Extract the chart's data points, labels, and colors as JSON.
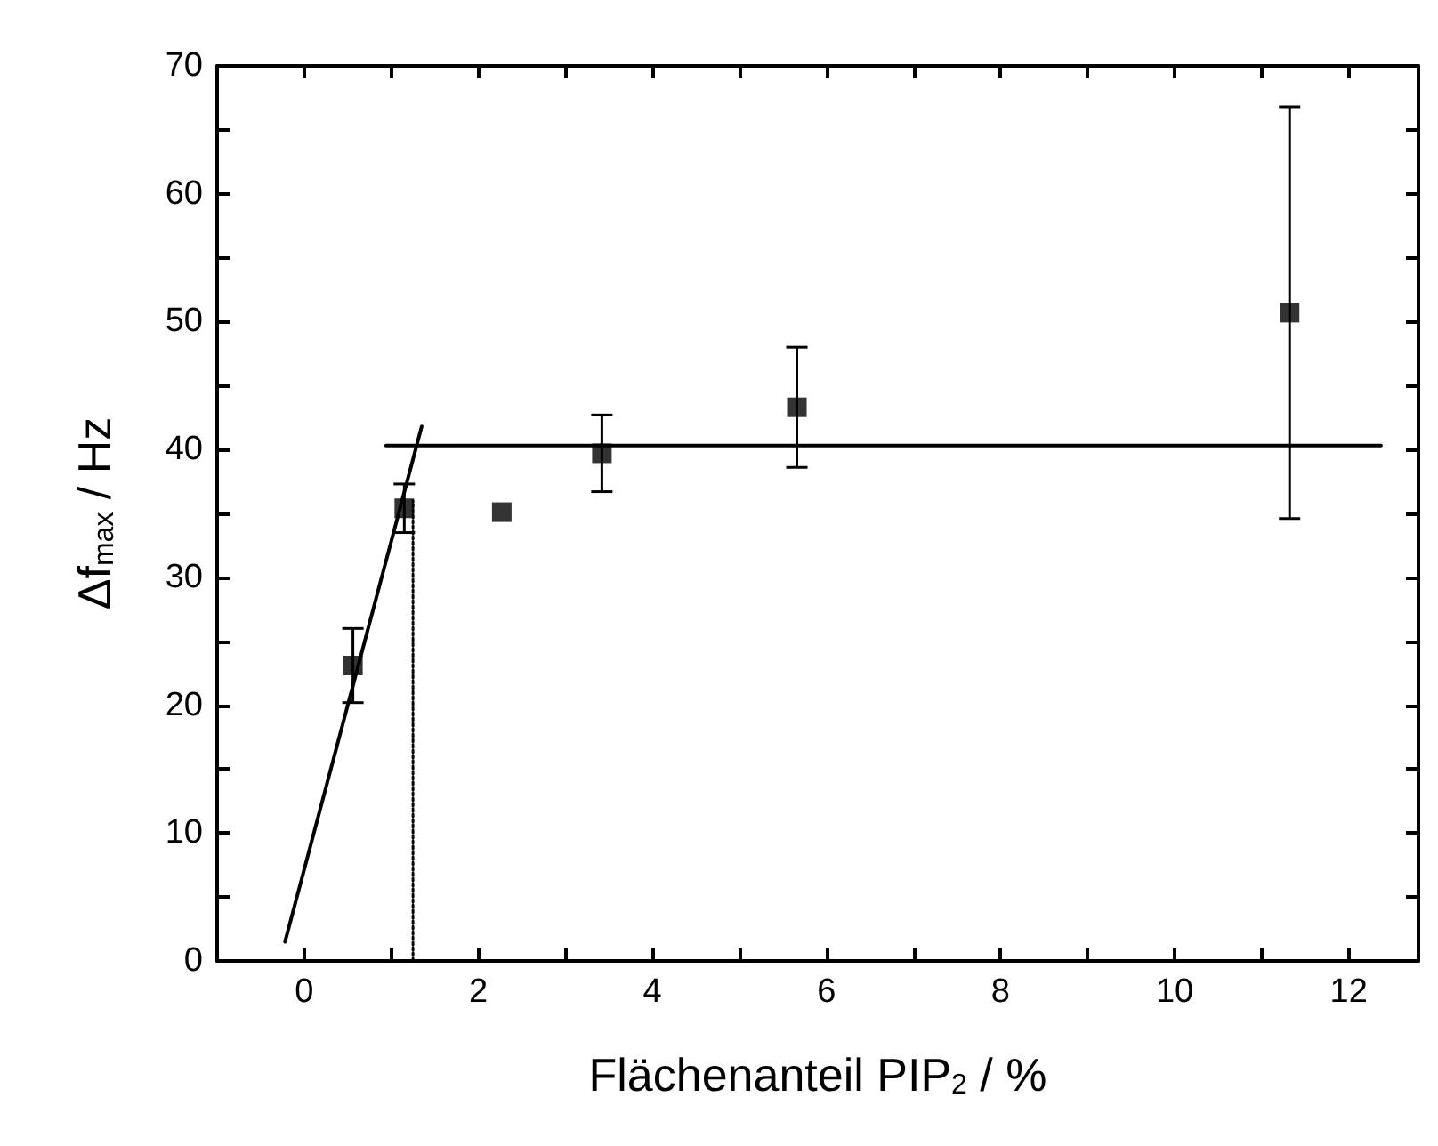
{
  "chart_data": {
    "type": "scatter",
    "xlabel": "Flächenanteil PIP$_{2}$ / %",
    "ylabel": "Δf$_{max}$ / Hz",
    "xlim": [
      -1,
      12.8
    ],
    "ylim": [
      0,
      70
    ],
    "xticks": [
      0,
      {
        "value": 1,
        "label": null
      },
      2,
      {
        "value": 3,
        "label": null
      },
      4,
      {
        "value": 5,
        "label": null
      },
      6,
      {
        "value": 7,
        "label": null
      },
      8,
      {
        "value": 9,
        "label": null
      },
      10,
      {
        "value": 11,
        "label": null
      },
      12
    ],
    "yticks": [
      0,
      {
        "value": 5,
        "label": null
      },
      10,
      {
        "value": 15,
        "label": null
      },
      20,
      {
        "value": 25,
        "label": null
      },
      30,
      {
        "value": 35,
        "label": null
      },
      40,
      {
        "value": 45,
        "label": null
      },
      50,
      {
        "value": 55,
        "label": null
      },
      60,
      {
        "value": 65,
        "label": null
      },
      70
    ],
    "grid": false,
    "series": [
      {
        "color": "#000000",
        "marker": "square",
        "x": [
          0.56,
          1.15,
          2.27,
          3.42,
          5.66,
          11.32
        ],
        "values": [
          23.1,
          35.4,
          35.1,
          39.7,
          43.3,
          50.7
        ],
        "errors": [
          2.9,
          1.9,
          null,
          3,
          4.7,
          16.1
        ]
      },
      {
        "type": "line",
        "color": "#000000",
        "marker": "none",
        "line_style": "solid",
        "x": [
          -0.22,
          1.35
        ],
        "values": [
          1.5,
          41.8
        ]
      },
      {
        "type": "line",
        "color": "#000000",
        "marker": "none",
        "line_style": "solid",
        "x": [
          0.94,
          12.37
        ],
        "values": [
          40.3,
          40.3
        ]
      },
      {
        "type": "line",
        "color": "#000000",
        "marker": "none",
        "line_style": "dotted",
        "x": [
          1.25,
          1.25
        ],
        "values": [
          0,
          36
        ]
      }
    ]
  }
}
